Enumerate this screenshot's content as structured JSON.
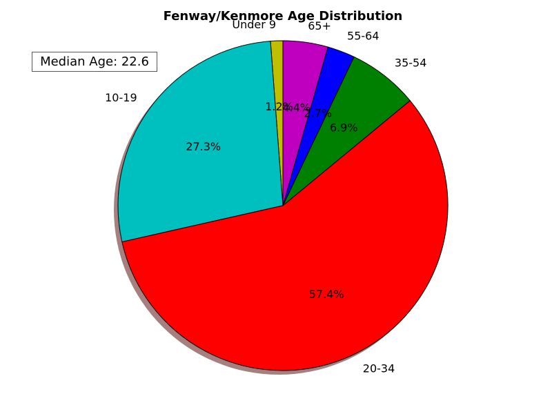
{
  "chart_data": {
    "type": "pie",
    "title": "Fenway/Kenmore Age Distribution",
    "categories": [
      "Under 9",
      "10-19",
      "20-34",
      "35-54",
      "55-64",
      "65+"
    ],
    "values": [
      1.2,
      27.3,
      57.4,
      6.9,
      2.7,
      4.4
    ],
    "value_labels": [
      "1.2%",
      "27.3%",
      "57.4%",
      "6.9%",
      "2.7%",
      "4.4%"
    ],
    "colors": [
      "#bfbf00",
      "#00bfbf",
      "#ff0000",
      "#008000",
      "#0000ff",
      "#bf00bf"
    ],
    "start_angle_deg": 90,
    "direction": "counterclockwise",
    "shadow": true,
    "annotation": "Median Age: 22.6"
  }
}
